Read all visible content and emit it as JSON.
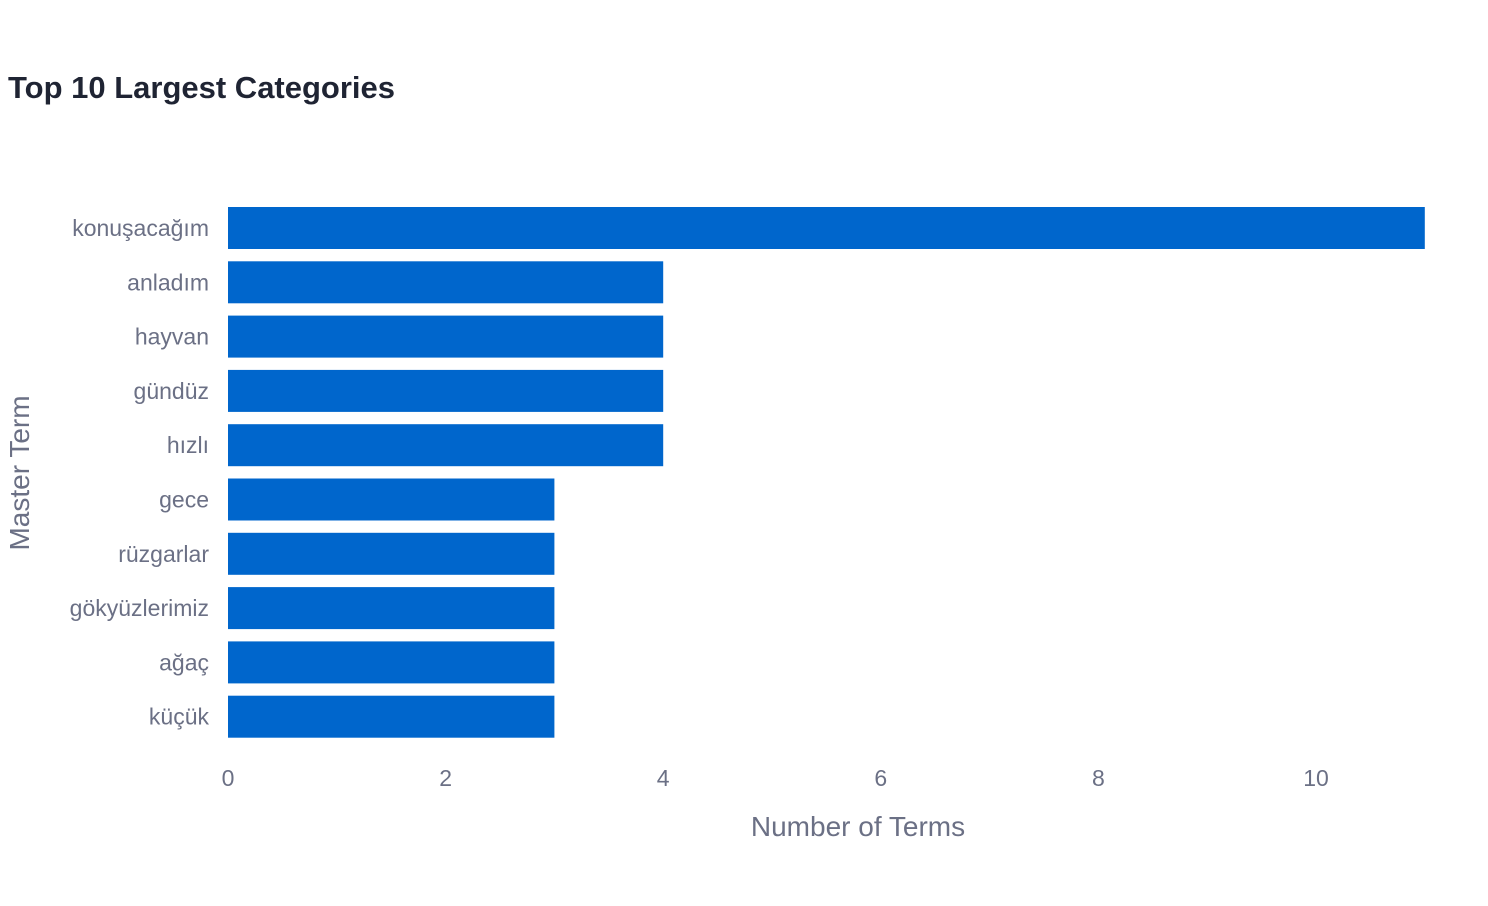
{
  "chart_data": {
    "type": "bar",
    "orientation": "horizontal",
    "title": "Top 10 Largest Categories",
    "xlabel": "Number of Terms",
    "ylabel": "Master Term",
    "categories": [
      "konuşacağım",
      "anladım",
      "hayvan",
      "gündüz",
      "hızlı",
      "gece",
      "rüzgarlar",
      "gökyüzlerimiz",
      "ağaç",
      "küçük"
    ],
    "values": [
      11,
      4,
      4,
      4,
      4,
      3,
      3,
      3,
      3,
      3
    ],
    "xticks": [
      "0",
      "2",
      "4",
      "6",
      "8",
      "10"
    ],
    "xlim": [
      0,
      11.2
    ],
    "grid": false,
    "bar_color": "#0066cc"
  }
}
